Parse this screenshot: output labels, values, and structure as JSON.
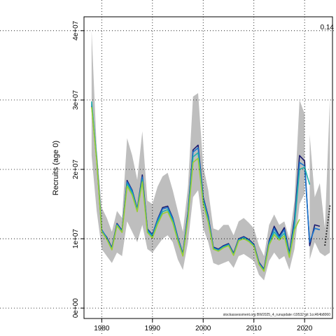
{
  "chart_data": {
    "type": "line",
    "title": "",
    "xlabel": "",
    "ylabel": "Recruits (age 0)",
    "xlim": [
      1976.5,
      2025.5
    ],
    "ylim": [
      -1500000,
      42000000
    ],
    "x_ticks": [
      1980,
      1990,
      2000,
      2010,
      2020
    ],
    "y_ticks": [
      0,
      10000000,
      20000000,
      30000000,
      40000000
    ],
    "y_tick_labels": [
      "0e+00",
      "1e+07",
      "2e+07",
      "3e+07",
      "4e+07"
    ],
    "grid": true,
    "legend": "none",
    "annotation": "0.14",
    "source_note": "stockassessment.org BW2025_4_runupdate r19532 git 1cc464b8060",
    "confidence_band": {
      "color": "#bebebe",
      "x": [
        1978,
        1979,
        1980,
        1981,
        1982,
        1983,
        1984,
        1985,
        1986,
        1987,
        1988,
        1989,
        1990,
        1991,
        1992,
        1993,
        1994,
        1995,
        1996,
        1997,
        1998,
        1999,
        2000,
        2001,
        2002,
        2003,
        2004,
        2005,
        2006,
        2007,
        2008,
        2009,
        2010,
        2011,
        2012,
        2013,
        2014,
        2015,
        2016,
        2017,
        2018,
        2019,
        2020
      ],
      "lower": [
        22000000,
        14000000,
        8500000,
        7500000,
        6500000,
        8000000,
        7500000,
        12500000,
        11000000,
        9500000,
        12000000,
        8500000,
        8000000,
        9000000,
        10000000,
        10500000,
        9500000,
        7000000,
        5500000,
        9500000,
        16000000,
        17000000,
        11500000,
        9500000,
        6500000,
        6200000,
        6500000,
        6800000,
        5800000,
        7500000,
        7800000,
        7300000,
        6800000,
        4800000,
        4000000,
        6800000,
        8000000,
        7000000,
        7500000,
        5500000,
        8500000,
        15000000,
        16500000
      ],
      "upper": [
        40000000,
        23000000,
        14500000,
        13000000,
        11000000,
        14000000,
        13000000,
        24500000,
        22000000,
        18500000,
        25500000,
        15500000,
        15000000,
        17500000,
        19000000,
        19500000,
        17000000,
        14000000,
        11000000,
        17500000,
        30500000,
        31000000,
        20500000,
        17000000,
        11500000,
        11200000,
        12000000,
        12000000,
        10500000,
        12500000,
        13000000,
        12300000,
        11500000,
        9000000,
        7500000,
        12000000,
        13500000,
        12000000,
        12500000,
        10000000,
        15500000,
        30000000,
        28000000
      ]
    },
    "series": [
      {
        "name": "",
        "color": "#191970",
        "x": [
          1978,
          1979,
          1980,
          1981,
          1982,
          1983,
          1984,
          1985,
          1986,
          1987,
          1988,
          1989,
          1990,
          1991,
          1992,
          1993,
          1994,
          1995,
          1996,
          1997,
          1998,
          1999,
          2000,
          2001,
          2002,
          2003,
          2004,
          2005,
          2006,
          2007,
          2008,
          2009,
          2010,
          2011,
          2012,
          2013,
          2014,
          2015,
          2016,
          2017,
          2018,
          2019,
          2020,
          2021,
          2022,
          2023,
          2024
        ],
        "values": [
          29200000,
          21500000,
          11200000,
          10200000,
          8700000,
          12200000,
          11200000,
          18400000,
          17000000,
          14300000,
          19200000,
          11400000,
          10600000,
          12800000,
          14500000,
          14700000,
          13000000,
          10200000,
          7800000,
          13800000,
          22800000,
          23500000,
          16000000,
          13200000,
          8800000,
          8500000,
          9000000,
          9300000,
          7900000,
          10000000,
          10300000,
          9900000,
          9200000,
          6600000,
          5600000,
          9700000,
          11800000,
          10400000,
          11600000,
          7900000,
          12800000,
          22000000,
          21200000,
          9000000,
          12000000,
          11800000,
          null
        ]
      },
      {
        "name": "",
        "color": "#1874cd",
        "x": [
          1978,
          1979,
          1980,
          1981,
          1982,
          1983,
          1984,
          1985,
          1986,
          1987,
          1988,
          1989,
          1990,
          1991,
          1992,
          1993,
          1994,
          1995,
          1996,
          1997,
          1998,
          1999,
          2000,
          2001,
          2002,
          2003,
          2004,
          2005,
          2006,
          2007,
          2008,
          2009,
          2010,
          2011,
          2012,
          2013,
          2014,
          2015,
          2016,
          2017,
          2018,
          2019,
          2020,
          2021,
          2022,
          2023
        ],
        "values": [
          29500000,
          21800000,
          11300000,
          10100000,
          8600000,
          12100000,
          11100000,
          18200000,
          16900000,
          14200000,
          18900000,
          11300000,
          10500000,
          12700000,
          14300000,
          14500000,
          12900000,
          10100000,
          7700000,
          13600000,
          22500000,
          23100000,
          15800000,
          13000000,
          8700000,
          8400000,
          8900000,
          9200000,
          7800000,
          9900000,
          10200000,
          9800000,
          9100000,
          6500000,
          5500000,
          9500000,
          11500000,
          10200000,
          11300000,
          7700000,
          12300000,
          21000000,
          20500000,
          9500000,
          11500000,
          11300000
        ]
      },
      {
        "name": "",
        "color": "#20b2aa",
        "x": [
          1978,
          1979,
          1980,
          1981,
          1982,
          1983,
          1984,
          1985,
          1986,
          1987,
          1988,
          1989,
          1990,
          1991,
          1992,
          1993,
          1994,
          1995,
          1996,
          1997,
          1998,
          1999,
          2000,
          2001,
          2002,
          2003,
          2004,
          2005,
          2006,
          2007,
          2008,
          2009,
          2010,
          2011,
          2012,
          2013,
          2014,
          2015,
          2016,
          2017,
          2018,
          2019,
          2020,
          2021
        ],
        "values": [
          29800000,
          21600000,
          11100000,
          10000000,
          8500000,
          12000000,
          11000000,
          17900000,
          16600000,
          14100000,
          18500000,
          11100000,
          10300000,
          12400000,
          13900000,
          14200000,
          12600000,
          9900000,
          7600000,
          13200000,
          21800000,
          22400000,
          15500000,
          12700000,
          8600000,
          8300000,
          8800000,
          9100000,
          7700000,
          9800000,
          10100000,
          9700000,
          9000000,
          6400000,
          5400000,
          9300000,
          11000000,
          10000000,
          10800000,
          7500000,
          11800000,
          20000000,
          20300000,
          17800000
        ]
      },
      {
        "name": "",
        "color": "#9acd32",
        "x": [
          1978,
          1979,
          1980,
          1981,
          1982,
          1983,
          1984,
          1985,
          1986,
          1987,
          1988,
          1989,
          1990,
          1991,
          1992,
          1993,
          1994,
          1995,
          1996,
          1997,
          1998,
          1999,
          2000,
          2001,
          2002,
          2003,
          2004,
          2005,
          2006,
          2007,
          2008,
          2009,
          2010,
          2011,
          2012,
          2013,
          2014,
          2015,
          2016,
          2017,
          2018,
          2019
        ],
        "values": [
          29000000,
          21300000,
          11000000,
          9900000,
          8400000,
          11900000,
          10900000,
          17600000,
          16300000,
          13900000,
          18200000,
          10900000,
          10100000,
          12100000,
          13600000,
          13900000,
          12300000,
          9700000,
          7500000,
          12900000,
          21000000,
          21600000,
          15100000,
          12400000,
          8500000,
          8200000,
          8700000,
          9000000,
          7600000,
          9700000,
          10000000,
          9600000,
          8900000,
          6300000,
          5300000,
          9100000,
          10600000,
          9800000,
          10400000,
          7300000,
          11300000,
          12800000
        ]
      }
    ],
    "forecast": {
      "color": "#333333",
      "x": [
        2024,
        2025
      ],
      "values": [
        9000000,
        14800000
      ],
      "band_x": [
        2021,
        2022,
        2023,
        2024,
        2025
      ],
      "band_lower": [
        7000000,
        9500000,
        8000000,
        7500000,
        8000000
      ],
      "band_upper": [
        25000000,
        16000000,
        18000000,
        11500000,
        30500000
      ]
    }
  }
}
